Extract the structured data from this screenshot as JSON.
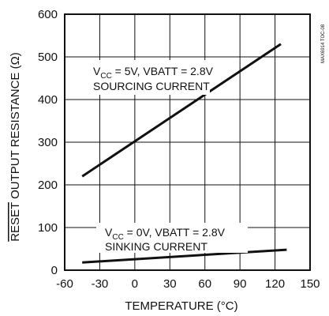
{
  "chart_data": {
    "type": "line",
    "xlabel": "TEMPERATURE (°C)",
    "ylabel_overline": "RESET",
    "ylabel_rest": " OUTPUT RESISTANCE (Ω)",
    "xlim": [
      -60,
      150
    ],
    "ylim": [
      0,
      600
    ],
    "xticks": [
      -60,
      -30,
      0,
      30,
      60,
      90,
      120,
      150
    ],
    "yticks": [
      0,
      100,
      200,
      300,
      400,
      500,
      600
    ],
    "grid": true,
    "series": [
      {
        "name": "V_CC = 5V, VBATT = 2.8V SOURCING CURRENT",
        "x": [
          -45,
          125
        ],
        "y": [
          220,
          530
        ]
      },
      {
        "name": "V_CC = 0V, VBATT = 2.8V SINKING CURRENT",
        "x": [
          -45,
          130
        ],
        "y": [
          18,
          48
        ]
      }
    ],
    "annotations": {
      "sourcing": {
        "v": "V",
        "sub": "CC",
        "rest": " = 5V, VBATT = 2.8V",
        "line2": "SOURCING CURRENT"
      },
      "sinking": {
        "v": "V",
        "sub": "CC",
        "rest": " = 0V, VBATT = 2.8V",
        "line2": "SINKING CURRENT"
      }
    },
    "watermark": "MAX6914 TOC-08"
  }
}
